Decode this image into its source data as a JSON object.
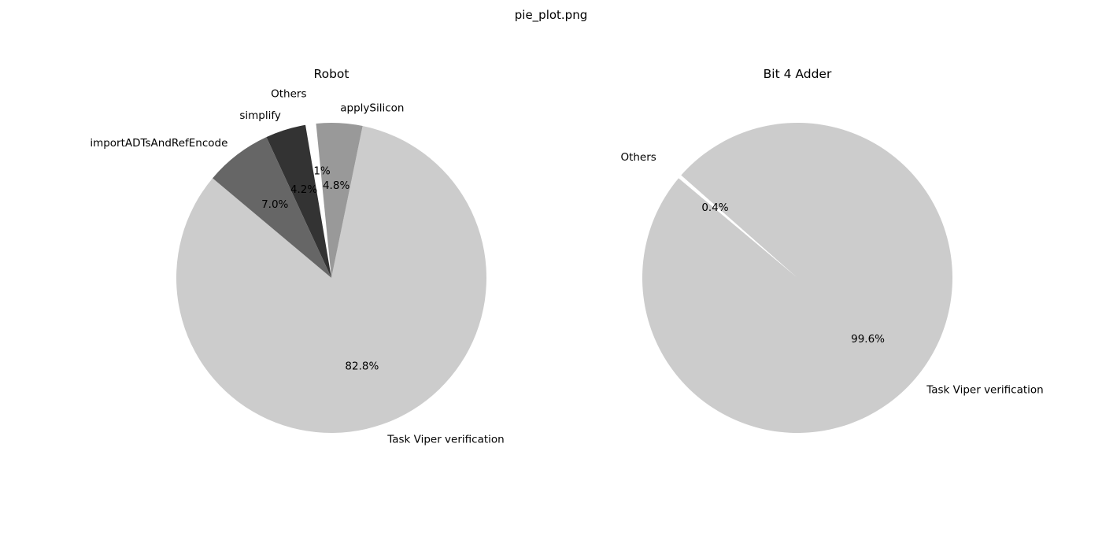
{
  "figure_title": "pie_plot.png",
  "chart_data": [
    {
      "type": "pie",
      "title": "Robot",
      "labels": [
        "Task Viper verification",
        "applySilicon",
        "Others",
        "simplify",
        "importADTsAndRefEncode"
      ],
      "values": [
        82.8,
        4.8,
        1.1,
        4.2,
        7.0
      ],
      "percent_labels": [
        "82.8%",
        "4.8%",
        "1.1%",
        "4.2%",
        "7.0%"
      ],
      "colors": [
        "#cccccc",
        "#999999",
        "#ffffff",
        "#333333",
        "#666666"
      ],
      "exploded": [
        "Others"
      ],
      "legend": "none"
    },
    {
      "type": "pie",
      "title": "Bit 4 Adder",
      "labels": [
        "Task Viper verification",
        "Others"
      ],
      "values": [
        99.6,
        0.4
      ],
      "percent_labels": [
        "99.6%",
        "0.4%"
      ],
      "colors": [
        "#cccccc",
        "#ffffff"
      ],
      "exploded": [
        "Others"
      ],
      "legend": "none"
    }
  ]
}
